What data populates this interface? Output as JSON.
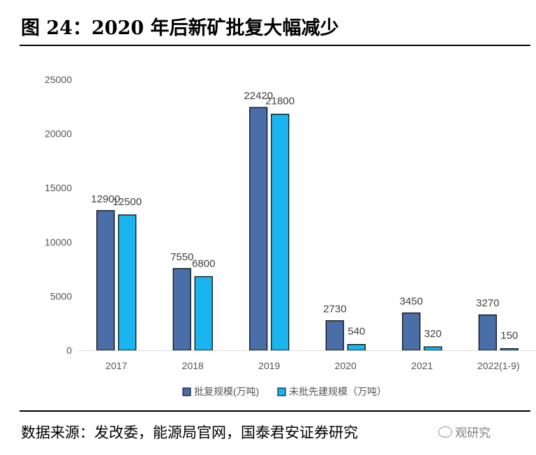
{
  "header": {
    "title": "图 24：2020 年后新矿批复大幅减少"
  },
  "footer": {
    "source": "数据来源：发改委，能源局官网，国泰君安证券研究",
    "watermark": "观研究"
  },
  "colors": {
    "series1": "#4A6EA8",
    "series2": "#1AB4EE",
    "axis_text": "#555555",
    "label_text": "#404040"
  },
  "chart_data": {
    "type": "bar",
    "title": "",
    "xlabel": "",
    "ylabel": "",
    "categories": [
      "2017",
      "2018",
      "2019",
      "2020",
      "2021",
      "2022(1-9)"
    ],
    "series": [
      {
        "name": "批复规模(万吨)",
        "values": [
          12900,
          7550,
          22420,
          2730,
          3450,
          3270
        ]
      },
      {
        "name": "未批先建规模（万吨）",
        "values": [
          12500,
          6800,
          21800,
          540,
          320,
          150
        ]
      }
    ],
    "ylim": [
      0,
      25000
    ],
    "yticks": [
      "0",
      "5000",
      "10000",
      "15000",
      "20000",
      "25000"
    ],
    "grid": false,
    "legend_position": "bottom"
  }
}
